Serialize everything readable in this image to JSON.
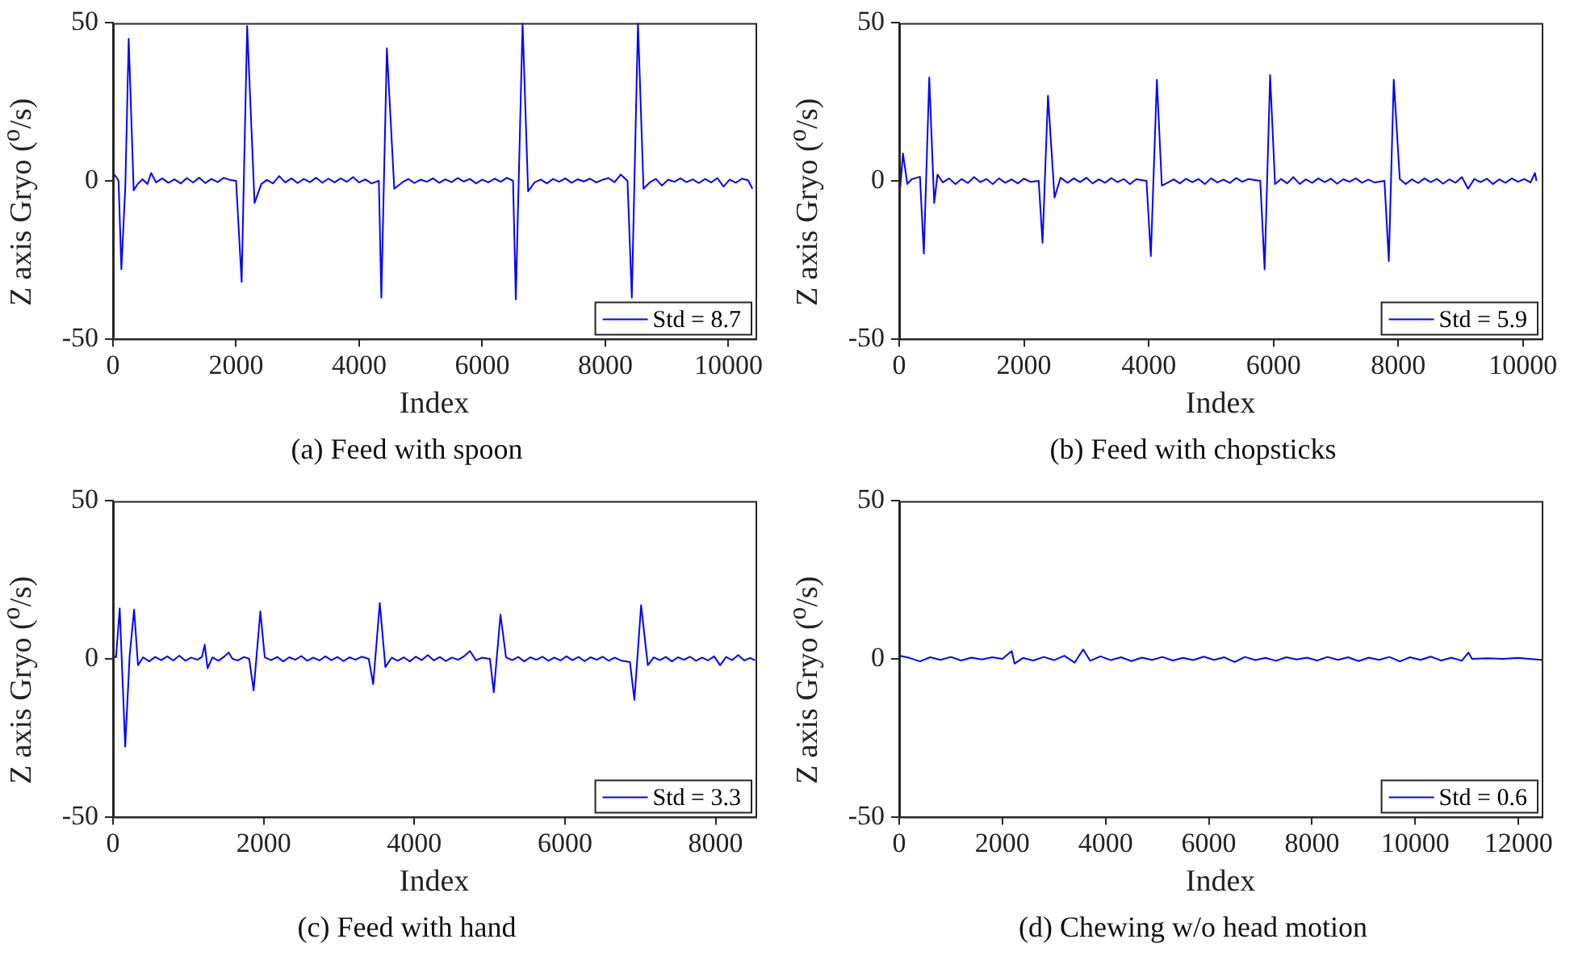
{
  "chart_data": [
    {
      "type": "line",
      "title": "(a) Feed with spoon",
      "xlabel": "Index",
      "ylabel": "Z axis Gryo ($^{o}$/s)",
      "xlim": [
        0,
        10440
      ],
      "ylim": [
        -50,
        50
      ],
      "xticks": [
        0,
        2000,
        4000,
        6000,
        8000,
        10000
      ],
      "yticks": [
        -50,
        0,
        50
      ],
      "grid": false,
      "legend": "bottom right",
      "series": [
        {
          "name": "Std = 8.7",
          "color": "#0000ff",
          "x": [
            0,
            60,
            90,
            136,
            200,
            255,
            336,
            400,
            480,
            560,
            620,
            700,
            800,
            900,
            1000,
            1100,
            1200,
            1300,
            1400,
            1500,
            1600,
            1700,
            1800,
            1900,
            2000,
            2090,
            2180,
            2300,
            2410,
            2500,
            2600,
            2700,
            2800,
            2900,
            3000,
            3100,
            3200,
            3300,
            3400,
            3500,
            3600,
            3700,
            3800,
            3900,
            4000,
            4100,
            4200,
            4320,
            4360,
            4450,
            4570,
            4700,
            4800,
            4900,
            5000,
            5100,
            5200,
            5300,
            5400,
            5500,
            5600,
            5700,
            5800,
            5900,
            6000,
            6100,
            6200,
            6300,
            6400,
            6500,
            6545,
            6655,
            6745,
            6850,
            6950,
            7050,
            7150,
            7250,
            7350,
            7450,
            7550,
            7650,
            7750,
            7850,
            7950,
            8050,
            8150,
            8250,
            8360,
            8430,
            8530,
            8620,
            8720,
            8820,
            8920,
            9020,
            9120,
            9220,
            9320,
            9420,
            9520,
            9620,
            9720,
            9820,
            9920,
            10020,
            10120,
            10220,
            10320,
            10390
          ],
          "values": [
            2.5,
            1,
            0,
            -28,
            -2,
            45,
            -3,
            -1,
            0.5,
            -1,
            2.5,
            -0.5,
            0.8,
            -0.6,
            0.5,
            -0.8,
            0.9,
            -0.5,
            1,
            -0.7,
            0.6,
            -0.4,
            1,
            0.3,
            0,
            -32,
            49,
            -7,
            -1,
            0.3,
            -0.8,
            1.5,
            -0.5,
            0.8,
            -0.7,
            0.6,
            -0.4,
            1,
            -0.6,
            0.7,
            -0.5,
            0.8,
            -0.3,
            1.2,
            -0.5,
            0.5,
            -0.8,
            0,
            -37,
            42,
            -2.5,
            -0.5,
            0.6,
            -0.7,
            0.4,
            -0.3,
            0.8,
            -0.6,
            0.5,
            -0.4,
            0.9,
            -0.2,
            0.6,
            -0.8,
            0.4,
            -0.5,
            0.7,
            -0.3,
            1,
            0,
            -37.5,
            50,
            -3.3,
            -0.5,
            0.4,
            -0.8,
            0.6,
            -0.3,
            0.8,
            -0.6,
            0.5,
            -0.2,
            0.7,
            -0.5,
            0.3,
            0.9,
            -0.4,
            2,
            0,
            -37,
            50,
            -2.5,
            -0.5,
            0.6,
            -1.5,
            0.4,
            -0.3,
            0.8,
            -0.4,
            0.5,
            -0.7,
            0.6,
            -0.5,
            0.9,
            -1.8,
            0.4,
            -0.6,
            0.7,
            0.2,
            -2.5
          ]
        }
      ]
    },
    {
      "type": "line",
      "title": "(b) Feed with chopsticks",
      "xlabel": "Index",
      "ylabel": "Z axis Gryo ($^{o}$/s)",
      "xlim": [
        0,
        10300
      ],
      "ylim": [
        -50,
        50
      ],
      "xticks": [
        0,
        2000,
        4000,
        6000,
        8000,
        10000
      ],
      "yticks": [
        -50,
        0,
        50
      ],
      "grid": false,
      "legend": "bottom right",
      "series": [
        {
          "name": "Std = 5.9",
          "color": "#0000ff",
          "x": [
            0,
            18,
            60,
            130,
            200,
            333,
            395,
            482,
            561,
            614,
            700,
            800,
            900,
            1000,
            1100,
            1200,
            1300,
            1400,
            1500,
            1600,
            1700,
            1800,
            1900,
            2000,
            2100,
            2236,
            2298,
            2385,
            2490,
            2587,
            2700,
            2800,
            2900,
            3000,
            3100,
            3200,
            3300,
            3400,
            3500,
            3600,
            3700,
            3800,
            3964,
            4034,
            4131,
            4210,
            4300,
            4400,
            4500,
            4600,
            4700,
            4800,
            4900,
            5000,
            5100,
            5200,
            5300,
            5400,
            5500,
            5600,
            5788,
            5858,
            5946,
            6025,
            6120,
            6220,
            6320,
            6420,
            6520,
            6620,
            6720,
            6820,
            6920,
            7020,
            7120,
            7220,
            7320,
            7420,
            7520,
            7620,
            7779,
            7849,
            7928,
            8025,
            8120,
            8220,
            8320,
            8420,
            8520,
            8620,
            8720,
            8820,
            8920,
            9020,
            9120,
            9220,
            9320,
            9420,
            9520,
            9620,
            9720,
            9820,
            9920,
            10020,
            10120,
            10191,
            10217
          ],
          "values": [
            1,
            -2,
            8.7,
            -1,
            0.5,
            1.3,
            -23,
            32.7,
            -7,
            2,
            -0.5,
            0.8,
            -1,
            0.6,
            -0.7,
            1.2,
            -0.4,
            0.6,
            -1,
            0.8,
            -0.6,
            0.5,
            -0.8,
            0.7,
            -0.3,
            0,
            -19.6,
            27,
            -5.3,
            1,
            -0.6,
            0.8,
            -0.4,
            1,
            -0.8,
            0.5,
            -0.6,
            0.9,
            -0.4,
            0.6,
            -1,
            0.5,
            0,
            -23.8,
            32,
            -1.5,
            -0.6,
            0.5,
            -0.8,
            0.7,
            -0.4,
            0.6,
            -1,
            0.8,
            -0.5,
            0.4,
            -0.7,
            0.9,
            -0.3,
            0.6,
            0,
            -28,
            33.5,
            -1,
            0.6,
            -0.8,
            1.2,
            -1,
            0.5,
            -0.6,
            0.8,
            -0.4,
            0.7,
            -0.9,
            0.5,
            -0.3,
            0.8,
            -0.6,
            0.4,
            -0.5,
            0,
            -25.4,
            32,
            0.6,
            -1,
            0.5,
            -0.7,
            0.8,
            -0.4,
            0.6,
            -0.9,
            0.5,
            -0.6,
            1.2,
            -2.5,
            0.6,
            -0.4,
            0.7,
            -1,
            0.5,
            -0.6,
            0.8,
            -0.3,
            0.6,
            -0.5,
            2.5,
            0
          ]
        }
      ]
    },
    {
      "type": "line",
      "title": "(c) Feed with hand",
      "xlabel": "Index",
      "ylabel": "Z axis Gryo ($^{o}$/s)",
      "xlim": [
        0,
        8530
      ],
      "ylim": [
        -50,
        50
      ],
      "xticks": [
        0,
        2000,
        4000,
        6000,
        8000
      ],
      "yticks": [
        -50,
        0,
        50
      ],
      "grid": false,
      "legend": "bottom right",
      "series": [
        {
          "name": "Std = 3.3",
          "color": "#0000ff",
          "x": [
            0,
            40,
            89,
            162,
            221,
            280,
            332,
            400,
            480,
            560,
            640,
            720,
            800,
            880,
            960,
            1040,
            1120,
            1180,
            1218,
            1255,
            1320,
            1400,
            1480,
            1535,
            1587,
            1660,
            1740,
            1808,
            1867,
            1956,
            2015,
            2100,
            2180,
            2260,
            2340,
            2420,
            2500,
            2580,
            2660,
            2740,
            2820,
            2900,
            2980,
            3060,
            3140,
            3220,
            3300,
            3395,
            3454,
            3542,
            3616,
            3700,
            3780,
            3860,
            3940,
            4020,
            4100,
            4180,
            4260,
            4340,
            4420,
            4500,
            4580,
            4660,
            4740,
            4820,
            4900,
            5004,
            5055,
            5144,
            5218,
            5300,
            5380,
            5460,
            5540,
            5620,
            5700,
            5780,
            5860,
            5940,
            6020,
            6100,
            6180,
            6260,
            6340,
            6420,
            6500,
            6580,
            6660,
            6740,
            6863,
            6922,
            7011,
            7100,
            7180,
            7260,
            7340,
            7420,
            7500,
            7580,
            7660,
            7740,
            7820,
            7900,
            7980,
            8060,
            8140,
            8220,
            8300,
            8380,
            8460,
            8524
          ],
          "values": [
            1,
            0.5,
            16,
            -27.8,
            1,
            15.6,
            -2,
            0.5,
            -0.8,
            0.6,
            -0.4,
            0.8,
            -0.5,
            1,
            -0.6,
            0.4,
            -0.3,
            0.6,
            4.5,
            -3,
            0.5,
            -0.6,
            0.8,
            2,
            0,
            -0.5,
            0.6,
            0,
            -10,
            15,
            0.5,
            -0.4,
            0.6,
            -0.8,
            0.5,
            -0.3,
            0.9,
            -0.6,
            0.4,
            -0.5,
            0.8,
            -0.4,
            0.6,
            -0.7,
            0.5,
            -0.3,
            0.7,
            0,
            -8,
            17.7,
            -2.6,
            0.4,
            -0.6,
            0.5,
            -0.8,
            0.7,
            -0.4,
            1.2,
            -0.5,
            0.6,
            -0.7,
            0.4,
            -0.3,
            0.8,
            2.5,
            -0.5,
            0.4,
            0,
            -10.6,
            14,
            0.5,
            -0.4,
            0.6,
            -0.8,
            0.5,
            -0.3,
            0.7,
            -0.6,
            0.4,
            -0.5,
            0.8,
            -0.4,
            0.6,
            -0.7,
            0.5,
            -0.3,
            0.7,
            -0.6,
            0.4,
            -0.5,
            -1,
            -13,
            17,
            -2,
            0.5,
            -0.4,
            0.6,
            -0.8,
            0.5,
            -0.3,
            0.7,
            -0.6,
            0.4,
            -0.5,
            0.8,
            -2,
            0.6,
            -0.4,
            1.2,
            -0.5,
            0.3,
            -0.5
          ]
        }
      ]
    },
    {
      "type": "line",
      "title": "(d) Chewing w/o head motion",
      "xlabel": "Index",
      "ylabel": "Z axis Gryo ($^{o}$/s)",
      "xlim": [
        0,
        12450
      ],
      "ylim": [
        -50,
        50
      ],
      "xticks": [
        0,
        2000,
        4000,
        6000,
        8000,
        10000,
        12000
      ],
      "yticks": [
        -50,
        0,
        50
      ],
      "grid": false,
      "legend": "bottom right",
      "series": [
        {
          "name": "Std = 0.6",
          "color": "#0000ff",
          "x": [
            0,
            200,
            400,
            600,
            800,
            1000,
            1200,
            1400,
            1600,
            1800,
            2000,
            2180,
            2234,
            2400,
            2600,
            2800,
            3000,
            3200,
            3400,
            3564,
            3700,
            3900,
            4100,
            4300,
            4500,
            4700,
            4900,
            5100,
            5300,
            5500,
            5700,
            5900,
            6100,
            6300,
            6500,
            6700,
            6900,
            7100,
            7300,
            7500,
            7700,
            7900,
            8100,
            8300,
            8500,
            8700,
            8900,
            9100,
            9300,
            9500,
            9700,
            9900,
            10100,
            10300,
            10500,
            10700,
            10900,
            11030,
            11100,
            11400,
            11700,
            12000,
            12200,
            12450
          ],
          "values": [
            1,
            0.3,
            -0.8,
            0.5,
            -0.3,
            0.6,
            -0.5,
            0.4,
            -0.2,
            0.5,
            0,
            2.5,
            -1.5,
            0.3,
            -0.5,
            0.6,
            -0.4,
            1,
            -1.2,
            3,
            -0.6,
            0.8,
            -0.4,
            0.5,
            -0.7,
            0.4,
            -0.3,
            0.6,
            -0.5,
            0.3,
            -0.4,
            0.7,
            -0.3,
            0.5,
            -1,
            0.6,
            -0.4,
            0.3,
            -0.6,
            0.5,
            -0.2,
            0.4,
            -0.5,
            0.6,
            -0.3,
            0.5,
            -0.7,
            0.4,
            -0.3,
            0.6,
            -0.8,
            0.5,
            -0.3,
            0.7,
            -0.5,
            0.4,
            -0.6,
            2,
            0,
            0.2,
            0,
            0.3,
            0,
            -0.3
          ]
        }
      ]
    }
  ]
}
